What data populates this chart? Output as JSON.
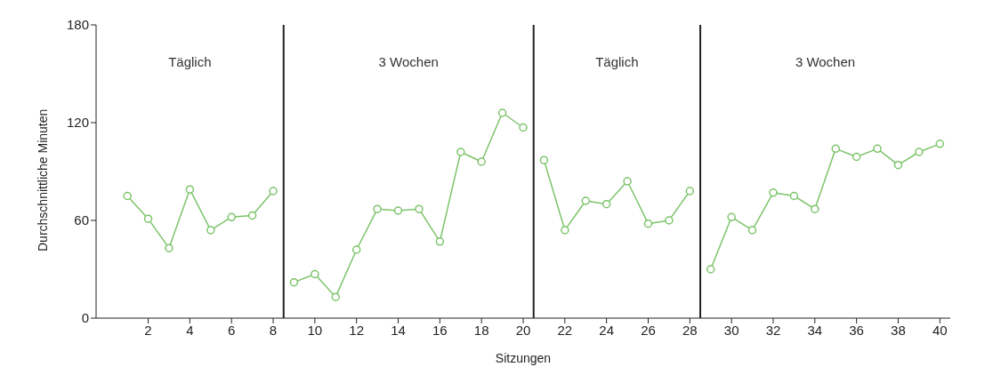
{
  "chart_data": {
    "type": "line",
    "xlabel": "Sitzungen",
    "ylabel": "Durchschnittliche Minuten",
    "series": [
      {
        "color": "#7cc46a",
        "x": [
          1,
          2,
          3,
          4,
          5,
          6,
          7,
          8
        ],
        "values": [
          75,
          61,
          43,
          79,
          54,
          62,
          63,
          78
        ]
      },
      {
        "color": "#7cc46a",
        "x": [
          9,
          10,
          11,
          12,
          13,
          14,
          15,
          16,
          17,
          18,
          19,
          20
        ],
        "values": [
          22,
          27,
          13,
          42,
          67,
          66,
          67,
          47,
          102,
          96,
          126,
          117
        ]
      },
      {
        "color": "#7cc46a",
        "x": [
          21,
          22,
          23,
          24,
          25,
          26,
          27,
          28
        ],
        "values": [
          97,
          54,
          72,
          70,
          84,
          58,
          60,
          78
        ]
      },
      {
        "color": "#7cc46a",
        "x": [
          29,
          30,
          31,
          32,
          33,
          34,
          35,
          36,
          37,
          38,
          39,
          40
        ],
        "values": [
          30,
          62,
          54,
          77,
          75,
          67,
          104,
          99,
          104,
          94,
          102,
          107
        ]
      }
    ],
    "ref_lines": [
      {
        "axis": "x",
        "value": 8.5,
        "color": "#222222"
      },
      {
        "axis": "x",
        "value": 20.5,
        "color": "#222222"
      },
      {
        "axis": "x",
        "value": 28.5,
        "color": "#222222"
      }
    ],
    "annotations": [
      "Täglich",
      "3 Wochen",
      "Täglich",
      "3 Wochen"
    ],
    "xlim": [
      -0.5,
      40.5
    ],
    "xticks": [
      2,
      4,
      6,
      8,
      10,
      12,
      14,
      16,
      18,
      20,
      22,
      24,
      26,
      28,
      30,
      32,
      34,
      36,
      38,
      40
    ],
    "ylim": [
      0,
      180
    ],
    "yticks": [
      0,
      60,
      120,
      180
    ],
    "grid": false,
    "marker": "circle",
    "line_style": "solid"
  }
}
